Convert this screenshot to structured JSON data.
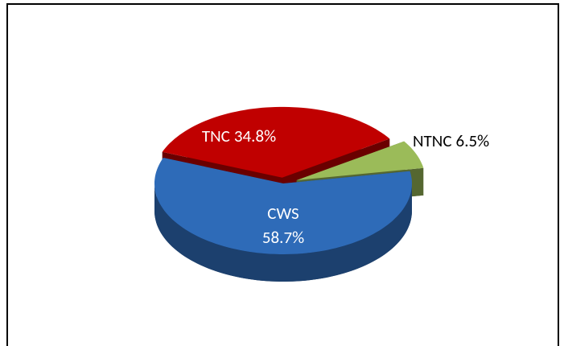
{
  "chart_data": {
    "type": "pie",
    "categories": [
      "CWS",
      "TNC",
      "NTNC"
    ],
    "values": [
      58.7,
      34.8,
      6.5
    ],
    "value_labels": [
      "58.7%",
      "34.8%",
      "6.5%"
    ],
    "colors": [
      "#2e6bb8",
      "#c00000",
      "#9bbb59"
    ]
  }
}
